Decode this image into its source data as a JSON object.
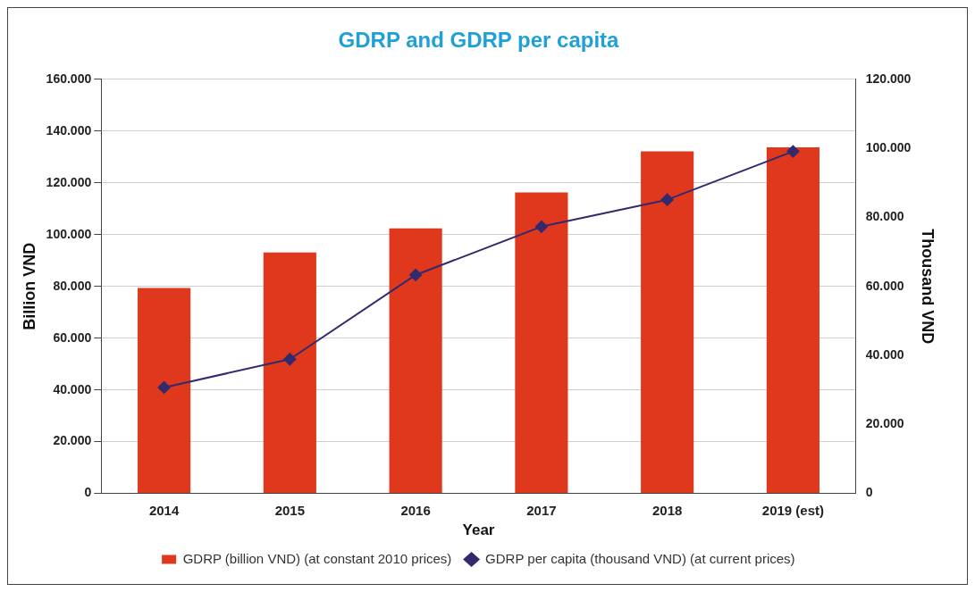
{
  "chart_data": {
    "type": "bar",
    "title": "GDRP and GDRP per capita",
    "xlabel": "Year",
    "ylabel": "Billion VND",
    "y2label": "Thousand VND",
    "categories": [
      "2014",
      "2015",
      "2016",
      "2017",
      "2018",
      "2019 (est)"
    ],
    "series": [
      {
        "name": "GDRP (billion VND) (at constant 2010 prices)",
        "color": "#e0381c",
        "values": [
          79400,
          93100,
          102400,
          116300,
          132200,
          133700
        ]
      },
      {
        "name": "GDRP per capita (thousand VND) (at current prices)",
        "type": "line",
        "axis": "y2",
        "color": "#332a6e",
        "marker": "diamond",
        "values": [
          30700,
          38900,
          63300,
          77300,
          85100,
          99100
        ]
      }
    ],
    "ylim": [
      0,
      160000
    ],
    "yticks": [
      {
        "value": 0,
        "label": "0"
      },
      {
        "value": 20000,
        "label": "20.000"
      },
      {
        "value": 40000,
        "label": "40.000"
      },
      {
        "value": 60000,
        "label": "60.000"
      },
      {
        "value": 80000,
        "label": "80.000"
      },
      {
        "value": 100000,
        "label": "100.000"
      },
      {
        "value": 120000,
        "label": "120.000"
      },
      {
        "value": 140000,
        "label": "140.000"
      },
      {
        "value": 160000,
        "label": "160.000"
      }
    ],
    "y2lim": [
      0,
      120000
    ],
    "y2ticks": [
      {
        "value": 0,
        "label": "0"
      },
      {
        "value": 20000,
        "label": "20.000"
      },
      {
        "value": 40000,
        "label": "40.000"
      },
      {
        "value": 60000,
        "label": "60.000"
      },
      {
        "value": 80000,
        "label": "80.000"
      },
      {
        "value": 100000,
        "label": "100.000"
      },
      {
        "value": 120000,
        "label": "120.000"
      }
    ],
    "grid": "y",
    "legend": "bottom"
  }
}
